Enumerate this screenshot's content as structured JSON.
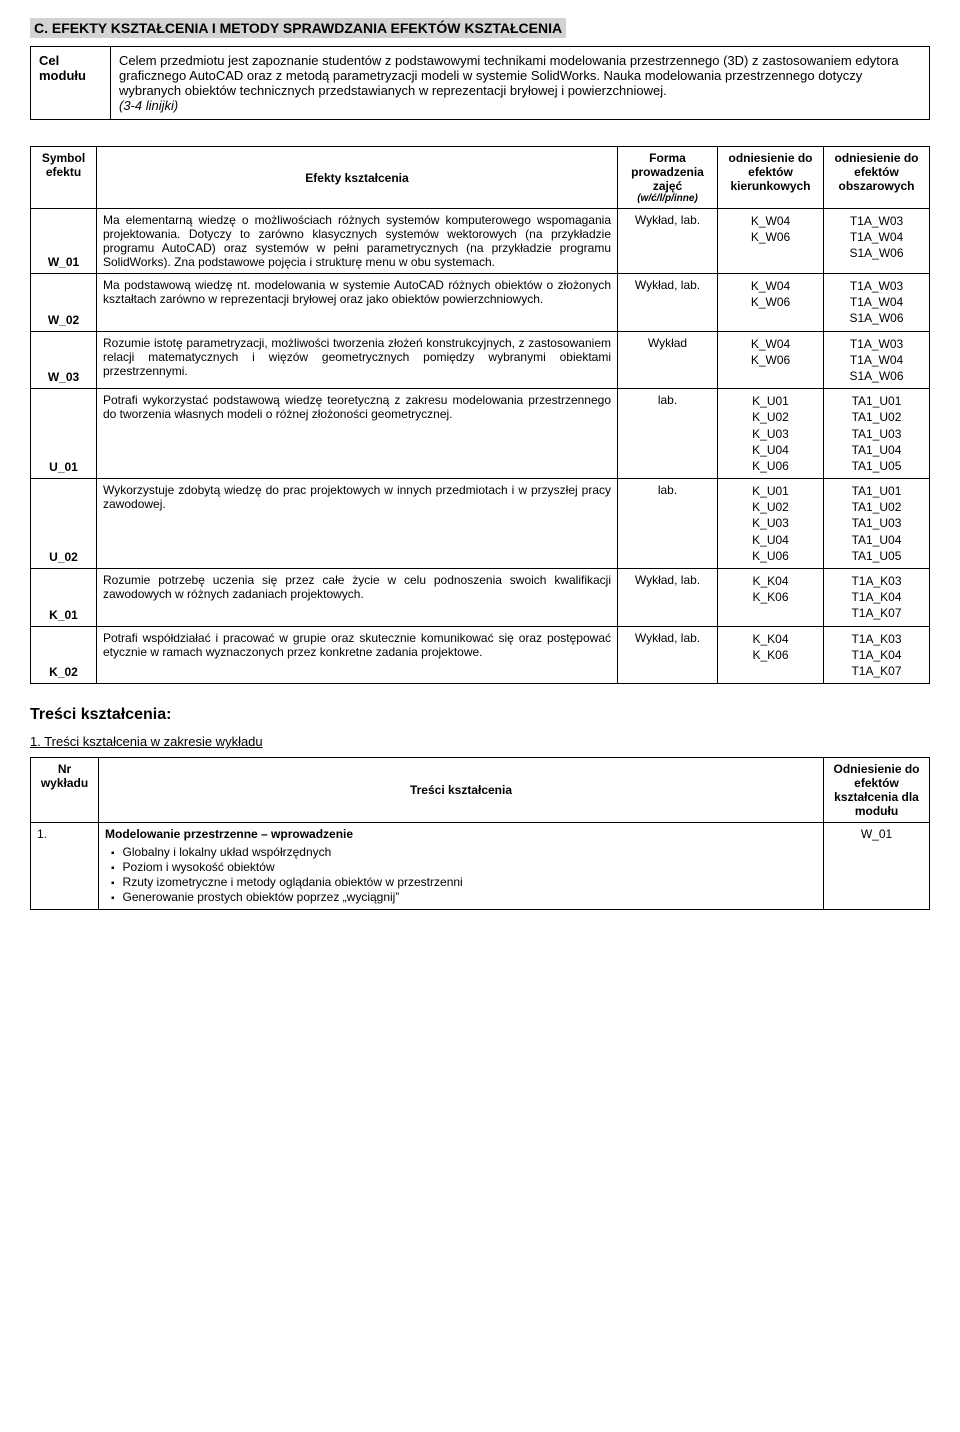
{
  "section_c": {
    "title": "C. EFEKTY KSZTAŁCENIA I METODY SPRAWDZANIA EFEKTÓW KSZTAŁCENIA",
    "goal_label_line1": "Cel",
    "goal_label_line2": "modułu",
    "goal_text": "Celem przedmiotu jest zapoznanie studentów z podstawowymi technikami modelowania przestrzennego (3D) z zastosowaniem edytora graficznego AutoCAD oraz z metodą parametryzacji modeli w systemie SolidWorks. Nauka modelowania przestrzennego dotyczy wybranych obiektów technicznych przedstawianych w reprezentacji bryłowej i powierzchniowej.",
    "goal_note": "(3-4 linijki)"
  },
  "effects_table": {
    "hdr_symbol": "Symbol efektu",
    "hdr_effects": "Efekty kształcenia",
    "hdr_form_line1": "Forma prowadzenia zajęć",
    "hdr_form_sub": "(w/ć/l/p/inne)",
    "hdr_kier": "odniesienie do efektów kierunkowych",
    "hdr_obsz": "odniesienie do efektów obszarowych",
    "rows": [
      {
        "sym": "W_01",
        "eff": "Ma elementarną wiedzę o możliwościach różnych systemów komputerowego wspomagania projektowania. Dotyczy to zarówno klasycznych systemów wektorowych (na przykładzie programu AutoCAD) oraz systemów w pełni parametrycznych (na przykładzie programu SolidWorks). Zna podstawowe pojęcia i strukturę menu w obu systemach.",
        "form": "Wykład, lab.",
        "kier": "K_W04\nK_W06",
        "obsz": "T1A_W03\nT1A_W04\nS1A_W06"
      },
      {
        "sym": "W_02",
        "eff": "Ma podstawową wiedzę nt. modelowania w systemie AutoCAD różnych obiektów o złożonych kształtach zarówno w reprezentacji bryłowej oraz jako obiektów powierzchniowych.",
        "form": "Wykład, lab.",
        "kier": "K_W04\nK_W06",
        "obsz": "T1A_W03\nT1A_W04\nS1A_W06"
      },
      {
        "sym": "W_03",
        "eff": "Rozumie istotę parametryzacji, możliwości tworzenia złożeń konstrukcyjnych, z zastosowaniem relacji matematycznych i więzów geometrycznych pomiędzy wybranymi obiektami przestrzennymi.",
        "form": "Wykład",
        "kier": "K_W04\nK_W06",
        "obsz": "T1A_W03\nT1A_W04\nS1A_W06"
      },
      {
        "sym": "U_01",
        "eff": "Potrafi wykorzystać podstawową wiedzę teoretyczną z zakresu modelowania przestrzennego do tworzenia własnych modeli o różnej złożoności geometrycznej.",
        "form": "lab.",
        "kier": "K_U01\nK_U02\nK_U03\nK_U04\nK_U06",
        "obsz": "TA1_U01\nTA1_U02\nTA1_U03\nTA1_U04\nTA1_U05"
      },
      {
        "sym": "U_02",
        "eff": "Wykorzystuje zdobytą wiedzę do prac projektowych w innych przedmiotach i w przyszłej pracy zawodowej.",
        "form": "lab.",
        "kier": "K_U01\nK_U02\nK_U03\nK_U04\nK_U06",
        "obsz": "TA1_U01\nTA1_U02\nTA1_U03\nTA1_U04\nTA1_U05"
      },
      {
        "sym": "K_01",
        "eff": "Rozumie potrzebę uczenia się przez całe życie w celu podnoszenia swoich kwalifikacji zawodowych w różnych zadaniach projektowych.",
        "form": "Wykład, lab.",
        "kier": "K_K04\nK_K06",
        "obsz": "T1A_K03\nT1A_K04\nT1A_K07"
      },
      {
        "sym": "K_02",
        "eff": "Potrafi współdziałać i pracować w grupie oraz skutecznie komunikować się oraz postępować etycznie w ramach wyznaczonych przez konkretne zadania projektowe.",
        "form": "Wykład, lab.",
        "kier": "K_K04\nK_K06",
        "obsz": "T1A_K03\nT1A_K04\nT1A_K07"
      }
    ]
  },
  "content_section": {
    "heading": "Treści kształcenia:",
    "sub1": "1.  Treści kształcenia w zakresie wykładu",
    "hdr_nr_line1": "Nr",
    "hdr_nr_line2": "wykładu",
    "hdr_tresci": "Treści kształcenia",
    "hdr_od": "Odniesienie do efektów kształcenia dla modułu",
    "row1": {
      "nr": "1.",
      "title": "Modelowanie przestrzenne – wprowadzenie",
      "bullets": [
        "Globalny i lokalny układ współrzędnych",
        "Poziom i wysokość obiektów",
        "Rzuty izometryczne i metody oglądania obiektów w przestrzenni",
        "Generowanie prostych obiektów poprzez „wyciągnij”"
      ],
      "od": "W_01"
    }
  }
}
